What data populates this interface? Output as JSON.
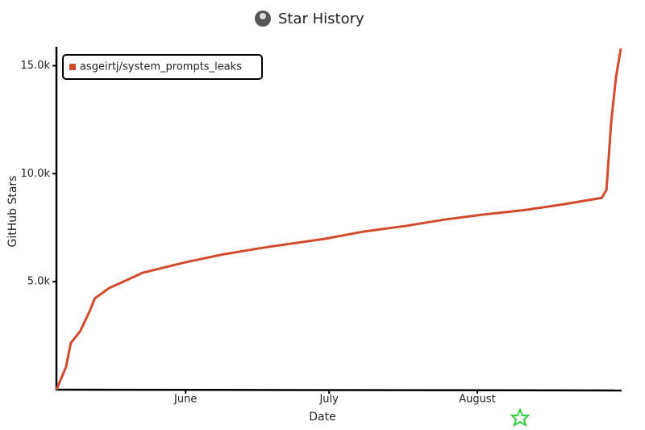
{
  "chart_data": {
    "type": "line",
    "title": "Star History",
    "x_label": "Date",
    "y_label": "GitHub Stars",
    "x": [
      0,
      2,
      3,
      5,
      7,
      8,
      11,
      14,
      18,
      22,
      27,
      35,
      44,
      56,
      64,
      73,
      81,
      89,
      98,
      106,
      114,
      115,
      116,
      117,
      118
    ],
    "series": [
      {
        "name": "asgeirtj/system_prompts_leaks",
        "color": "#d24a2c",
        "values": [
          0,
          1050,
          2160,
          2720,
          3660,
          4220,
          4700,
          5000,
          5410,
          5630,
          5900,
          6270,
          6600,
          6980,
          7310,
          7580,
          7870,
          8100,
          8320,
          8580,
          8880,
          9250,
          12430,
          14480,
          15790
        ]
      }
    ],
    "xlim": [
      0,
      118
    ],
    "xticks": [
      {
        "value": 27,
        "label": "June"
      },
      {
        "value": 57,
        "label": "July"
      },
      {
        "value": 88,
        "label": "August"
      }
    ],
    "ylim": [
      0,
      15800
    ],
    "yticks": [
      {
        "value": 5000,
        "label": "5.0k"
      },
      {
        "value": 10000,
        "label": "10.0k"
      },
      {
        "value": 15000,
        "label": "15.0k"
      }
    ],
    "legend": "top-left",
    "grid": false
  }
}
